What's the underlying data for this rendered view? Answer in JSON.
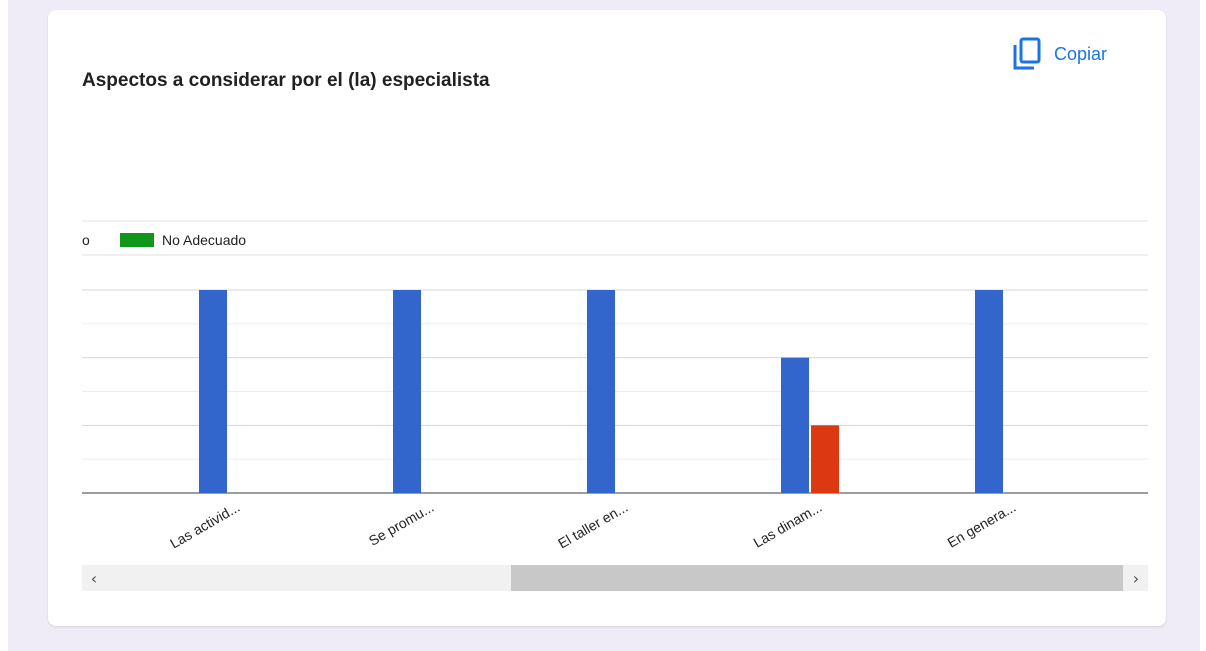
{
  "card": {
    "title": "Aspectos a considerar por el (la) especialista",
    "copy_label": "Copiar",
    "copy_icon": "copy-icon"
  },
  "chart_data": {
    "type": "bar",
    "title": "Aspectos a considerar por el (la) especialista",
    "categories": [
      "Las activid...",
      "Se promu...",
      "El taller en...",
      "Las dinam...",
      "En genera..."
    ],
    "series": [
      {
        "name": "",
        "color": "#3366cc",
        "values": [
          3,
          3,
          3,
          2,
          3
        ]
      },
      {
        "name": "",
        "color": "#dc3912",
        "values": [
          0,
          0,
          0,
          1,
          0
        ]
      },
      {
        "name": "No Adecuado",
        "color": "#109618",
        "values": [
          0,
          0,
          0,
          0,
          0
        ]
      }
    ],
    "legend_partial_text": "o",
    "ylim": [
      0,
      3
    ],
    "grid": true,
    "legend": "top-left"
  },
  "scrollbar": {
    "left_arrow": "‹",
    "right_arrow": "›"
  }
}
